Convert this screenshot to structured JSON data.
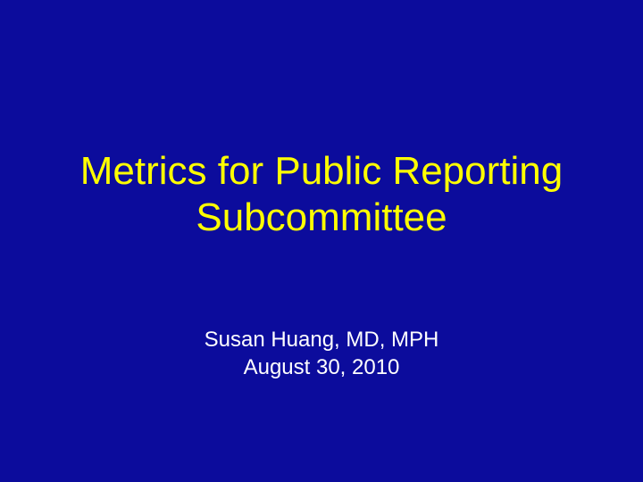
{
  "slide": {
    "title_lines": [
      "Metrics for Public Reporting",
      "Subcommittee"
    ],
    "author": "Susan Huang, MD, MPH",
    "date": "August 30, 2010"
  },
  "colors": {
    "background": "#0c0c9c",
    "title": "#ffff00",
    "subtitle": "#ffffff"
  }
}
